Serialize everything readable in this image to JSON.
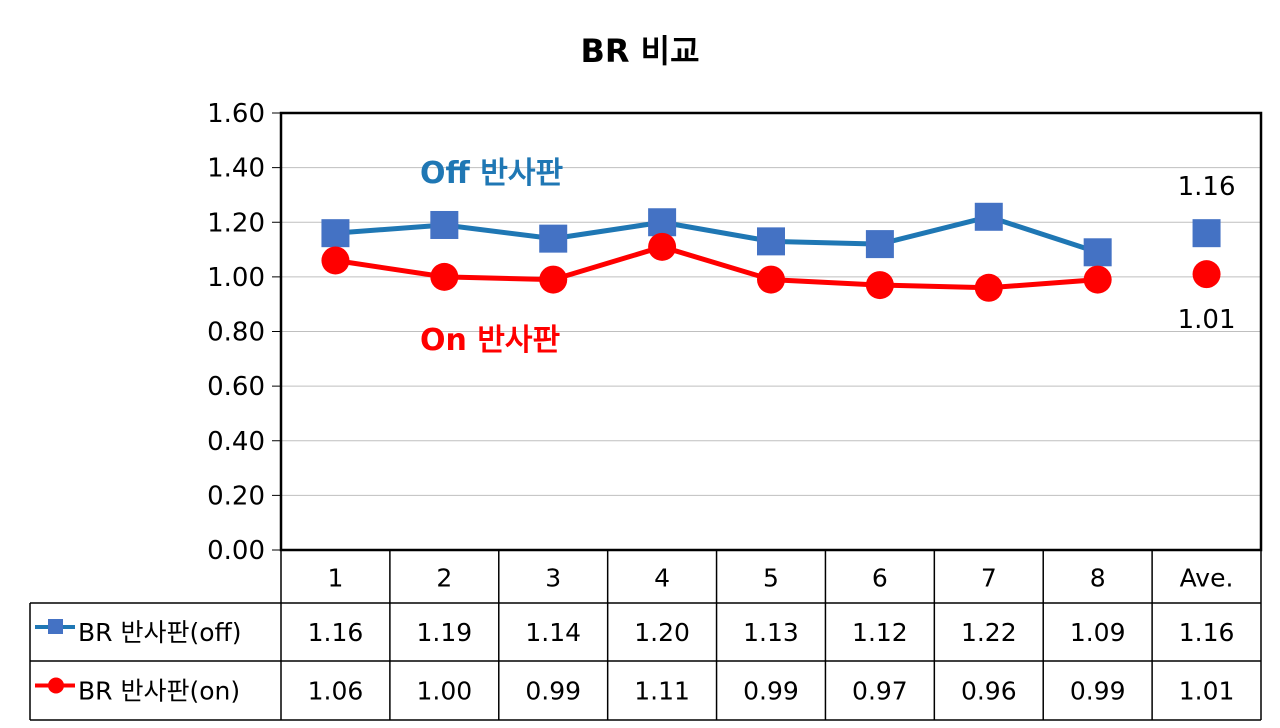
{
  "chart_data": {
    "type": "line",
    "title": "BR 비교",
    "categories": [
      "1",
      "2",
      "3",
      "4",
      "5",
      "6",
      "7",
      "8",
      "Ave."
    ],
    "yticks": [
      "0.00",
      "0.20",
      "0.40",
      "0.60",
      "0.80",
      "1.00",
      "1.20",
      "1.40",
      "1.60"
    ],
    "ylim": [
      0,
      1.6
    ],
    "grid": true,
    "legend_position": "data-table",
    "series": [
      {
        "name": "BR 반사판(off)",
        "chart_label": "Off 반사판",
        "color": "#1f77b4",
        "marker_color": "#4472c4",
        "marker": "square",
        "values": [
          1.16,
          1.19,
          1.14,
          1.2,
          1.13,
          1.12,
          1.22,
          1.09,
          1.16
        ],
        "value_labels": [
          "1.16",
          "1.19",
          "1.14",
          "1.20",
          "1.13",
          "1.12",
          "1.22",
          "1.09",
          "1.16"
        ]
      },
      {
        "name": "BR 반사판(on)",
        "chart_label": "On 반사판",
        "color": "#ff0000",
        "marker_color": "#ff0000",
        "marker": "circle",
        "values": [
          1.06,
          1.0,
          0.99,
          1.11,
          0.99,
          0.97,
          0.96,
          0.99,
          1.01
        ],
        "value_labels": [
          "1.06",
          "1.00",
          "0.99",
          "1.11",
          "0.99",
          "0.97",
          "0.96",
          "0.99",
          "1.01"
        ]
      }
    ],
    "annotations": [
      {
        "text": "1.16",
        "series": 0,
        "category": "Ave.",
        "position": "above"
      },
      {
        "text": "1.01",
        "series": 1,
        "category": "Ave.",
        "position": "below"
      }
    ]
  }
}
